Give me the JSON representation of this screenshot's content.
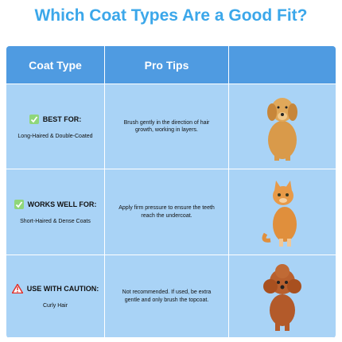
{
  "header": {
    "title": "Which Coat Types Are a Good Fit?"
  },
  "table": {
    "columns": [
      "Coat Type",
      "Pro Tips"
    ],
    "rows": [
      {
        "label": "BEST FOR:",
        "coat": "Long-Haired & Double-Coated",
        "tip": "Brush gently in the direction of hair growth, working in layers."
      },
      {
        "label": "WORKS WELL FOR:",
        "coat": "Short-Haired & Dense Coats",
        "tip": "Apply firm pressure to ensure the teeth reach the undercoat."
      },
      {
        "label": "USE WITH CAUTION:",
        "coat": "Curly Hair",
        "tip": "Not recommended. If used, be extra gentle and only brush the topcoat."
      }
    ]
  }
}
